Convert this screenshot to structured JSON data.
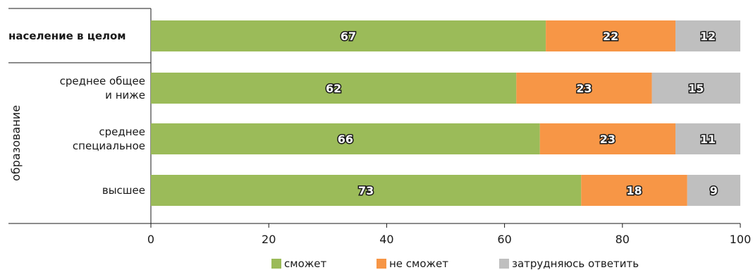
{
  "chart_data": {
    "type": "bar",
    "orientation": "horizontal",
    "stacked": true,
    "title": "",
    "xlabel": "",
    "ylabel": "",
    "xlim": [
      0,
      100
    ],
    "xticks": [
      0,
      20,
      40,
      60,
      80,
      100
    ],
    "grid": false,
    "legend_placement": "bottom",
    "group_label": "образование",
    "categories": [
      {
        "label": [
          "население в целом"
        ],
        "bold": true
      },
      {
        "label": [
          "среднее общее",
          "и ниже"
        ],
        "bold": false
      },
      {
        "label": [
          "среднее",
          "специальное"
        ],
        "bold": false
      },
      {
        "label": [
          "высшее"
        ],
        "bold": false
      }
    ],
    "series": [
      {
        "name": "сможет",
        "color": "#9bbb59",
        "values": [
          67,
          62,
          66,
          73
        ]
      },
      {
        "name": "не сможет",
        "color": "#f79646",
        "values": [
          22,
          23,
          23,
          18
        ]
      },
      {
        "name": "затрудняюсь ответить",
        "color": "#bfbfbf",
        "values": [
          12,
          15,
          11,
          9
        ]
      }
    ]
  }
}
